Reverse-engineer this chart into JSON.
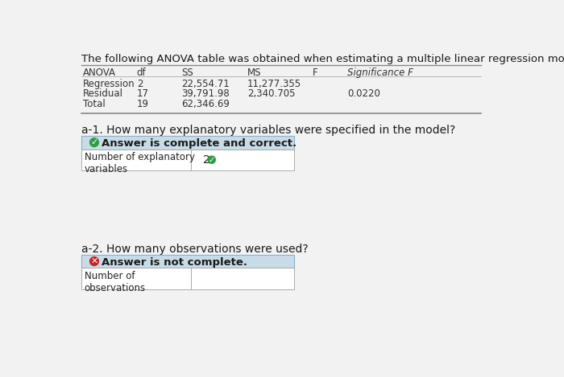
{
  "bg_color": "#f2f2f2",
  "header_text": "The following ANOVA table was obtained when estimating a multiple linear regression model.",
  "table_headers": [
    "ANOVA",
    "df",
    "SS",
    "MS",
    "F",
    "Significance F"
  ],
  "table_rows": [
    [
      "Regression",
      "2",
      "22,554.71",
      "11,277.355",
      "",
      ""
    ],
    [
      "Residual",
      "17",
      "39,791.98",
      "2,340.705",
      "",
      "0.0220"
    ],
    [
      "Total",
      "19",
      "62,346.69",
      "",
      "",
      ""
    ]
  ],
  "q1_text": "a-1. How many explanatory variables were specified in the model?",
  "q1_banner_text": "Answer is complete and correct.",
  "q1_banner_bg": "#c8dce8",
  "q1_label": "Number of explanatory\nvariables",
  "q1_value": "2",
  "q2_text": "a-2. How many observations were used?",
  "q2_banner_text": "Answer is not complete.",
  "q2_banner_bg": "#c8dce8",
  "q2_label": "Number of\nobservations",
  "q2_value": "",
  "table_border": "#888888",
  "text_color": "#222222"
}
